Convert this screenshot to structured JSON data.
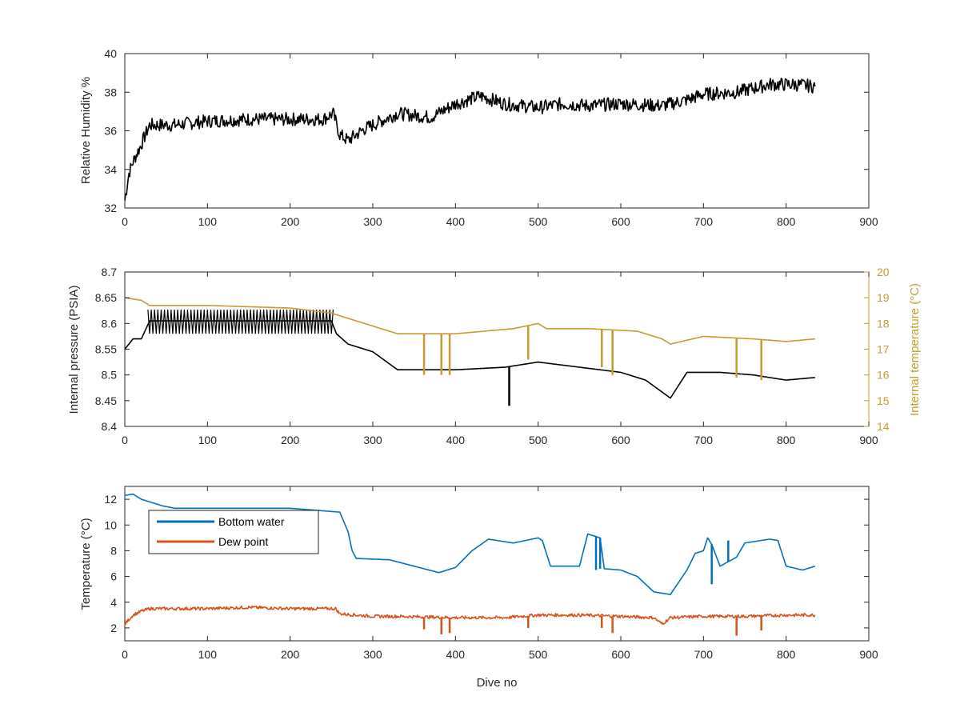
{
  "chart_data": [
    {
      "type": "line",
      "title": "",
      "xlabel": "",
      "ylabel": "Relative Humidity %",
      "xlim": [
        0,
        900
      ],
      "ylim": [
        32,
        40
      ],
      "xticks": [
        "0",
        "100",
        "200",
        "300",
        "400",
        "500",
        "600",
        "700",
        "800",
        "900"
      ],
      "yticks": [
        "32",
        "34",
        "36",
        "38",
        "40"
      ],
      "grid": false,
      "series": [
        {
          "color": "#000000",
          "noise": 0.35,
          "x": [
            0,
            5,
            10,
            20,
            30,
            60,
            100,
            150,
            200,
            240,
            252,
            260,
            270,
            290,
            330,
            370,
            400,
            430,
            460,
            500,
            530,
            560,
            600,
            650,
            680,
            700,
            740,
            780,
            810,
            835
          ],
          "y": [
            32.4,
            33.8,
            34.4,
            35.3,
            36.3,
            36.3,
            36.5,
            36.6,
            36.6,
            36.6,
            36.9,
            35.8,
            35.5,
            36.1,
            36.9,
            36.7,
            37.4,
            37.8,
            37.4,
            37.2,
            37.4,
            37.3,
            37.4,
            37.3,
            37.6,
            37.9,
            38.0,
            38.4,
            38.4,
            38.3
          ]
        }
      ]
    },
    {
      "type": "line",
      "title": "",
      "xlabel": "",
      "ylabel": "Internal pressure (PSIA)",
      "ylabel_right": "Internal temperature (°C)",
      "xlim": [
        0,
        900
      ],
      "ylim": [
        8.4,
        8.7
      ],
      "ylim_right": [
        14,
        20
      ],
      "xticks": [
        "0",
        "100",
        "200",
        "300",
        "400",
        "500",
        "600",
        "700",
        "800",
        "900"
      ],
      "yticks": [
        "8.4",
        "8.45",
        "8.5",
        "8.55",
        "8.6",
        "8.65",
        "8.7"
      ],
      "yticks_right": [
        "14",
        "15",
        "16",
        "17",
        "18",
        "19",
        "20"
      ],
      "grid": false,
      "series": [
        {
          "axis": "left",
          "color": "#000000",
          "x": [
            0,
            10,
            20,
            30,
            100,
            200,
            250,
            256,
            270,
            300,
            330,
            360,
            400,
            460,
            500,
            550,
            600,
            630,
            660,
            680,
            720,
            760,
            800,
            835
          ],
          "y": [
            8.55,
            8.57,
            8.57,
            8.605,
            8.605,
            8.605,
            8.605,
            8.58,
            8.56,
            8.545,
            8.51,
            8.51,
            8.51,
            8.515,
            8.525,
            8.515,
            8.505,
            8.49,
            8.455,
            8.505,
            8.505,
            8.5,
            8.49,
            8.495
          ],
          "band": [
            [
              28,
              252,
              8.58,
              8.627
            ]
          ],
          "spikes": [
            [
              465,
              8.44
            ]
          ]
        },
        {
          "axis": "right",
          "color": "#c99a2e",
          "x": [
            0,
            20,
            30,
            100,
            200,
            250,
            280,
            330,
            400,
            470,
            500,
            510,
            560,
            620,
            650,
            660,
            700,
            760,
            800,
            835
          ],
          "y": [
            19.0,
            18.9,
            18.7,
            18.7,
            18.6,
            18.4,
            18.1,
            17.6,
            17.6,
            17.8,
            18.0,
            17.8,
            17.8,
            17.7,
            17.4,
            17.2,
            17.5,
            17.4,
            17.3,
            17.4
          ],
          "spikes": [
            [
              362,
              16.0
            ],
            [
              383,
              16.0
            ],
            [
              393,
              16.0
            ],
            [
              488,
              16.6
            ],
            [
              577,
              16.3
            ],
            [
              590,
              16.0
            ],
            [
              740,
              15.9
            ],
            [
              770,
              15.8
            ]
          ]
        }
      ]
    },
    {
      "type": "line",
      "title": "",
      "xlabel": "Dive no",
      "ylabel": "Temperature (°C)",
      "xlim": [
        0,
        900
      ],
      "ylim": [
        1,
        13
      ],
      "xticks": [
        "0",
        "100",
        "200",
        "300",
        "400",
        "500",
        "600",
        "700",
        "800",
        "900"
      ],
      "yticks": [
        "2",
        "4",
        "6",
        "8",
        "10",
        "12"
      ],
      "grid": false,
      "legend": "top-left",
      "series": [
        {
          "name": "Bottom water",
          "color": "#0072bd",
          "x": [
            0,
            10,
            20,
            30,
            45,
            60,
            140,
            200,
            260,
            270,
            275,
            280,
            320,
            350,
            380,
            400,
            420,
            440,
            470,
            500,
            505,
            515,
            530,
            550,
            560,
            565,
            575,
            580,
            600,
            620,
            640,
            660,
            680,
            690,
            700,
            705,
            710,
            720,
            740,
            750,
            780,
            790,
            800,
            820,
            835
          ],
          "y": [
            12.3,
            12.4,
            12.0,
            11.8,
            11.5,
            11.3,
            11.3,
            11.3,
            11.0,
            9.5,
            8.0,
            7.4,
            7.3,
            6.8,
            6.3,
            6.7,
            8.0,
            8.9,
            8.6,
            9.0,
            8.8,
            6.8,
            6.8,
            6.8,
            9.3,
            9.2,
            9.0,
            6.6,
            6.5,
            6.0,
            4.8,
            4.6,
            6.5,
            7.8,
            8.0,
            9.0,
            8.5,
            6.8,
            7.5,
            8.6,
            8.9,
            8.8,
            6.8,
            6.5,
            6.8
          ],
          "spikes": [
            [
              570,
              6.5
            ],
            [
              575,
              6.6
            ],
            [
              710,
              5.4
            ],
            [
              720,
              6.8
            ],
            [
              730,
              8.8
            ]
          ]
        },
        {
          "name": "Dew point",
          "color": "#d95319",
          "noise": 0.12,
          "x": [
            0,
            10,
            20,
            30,
            60,
            100,
            150,
            200,
            255,
            260,
            300,
            330,
            400,
            460,
            500,
            550,
            600,
            640,
            650,
            660,
            700,
            750,
            800,
            835
          ],
          "y": [
            2.3,
            3.0,
            3.3,
            3.5,
            3.5,
            3.5,
            3.6,
            3.5,
            3.5,
            3.1,
            2.9,
            2.9,
            2.8,
            2.8,
            3.0,
            3.0,
            2.9,
            2.8,
            2.3,
            2.8,
            2.9,
            2.9,
            3.0,
            3.0
          ],
          "spikes": [
            [
              362,
              1.9
            ],
            [
              383,
              1.5
            ],
            [
              393,
              1.6
            ],
            [
              488,
              2.0
            ],
            [
              577,
              2.0
            ],
            [
              590,
              1.6
            ],
            [
              740,
              1.4
            ],
            [
              770,
              1.8
            ]
          ]
        }
      ]
    }
  ]
}
